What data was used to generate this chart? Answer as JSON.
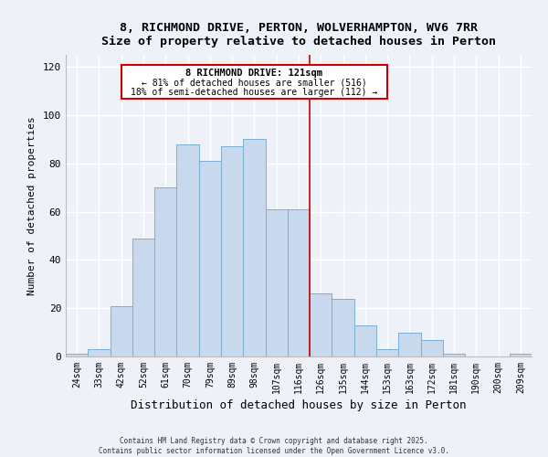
{
  "title": "8, RICHMOND DRIVE, PERTON, WOLVERHAMPTON, WV6 7RR",
  "subtitle": "Size of property relative to detached houses in Perton",
  "xlabel": "Distribution of detached houses by size in Perton",
  "ylabel": "Number of detached properties",
  "bar_labels": [
    "24sqm",
    "33sqm",
    "42sqm",
    "52sqm",
    "61sqm",
    "70sqm",
    "79sqm",
    "89sqm",
    "98sqm",
    "107sqm",
    "116sqm",
    "126sqm",
    "135sqm",
    "144sqm",
    "153sqm",
    "163sqm",
    "172sqm",
    "181sqm",
    "190sqm",
    "200sqm",
    "209sqm"
  ],
  "bar_values": [
    1,
    3,
    21,
    49,
    70,
    88,
    81,
    87,
    90,
    61,
    61,
    26,
    24,
    13,
    3,
    10,
    7,
    1,
    0,
    0,
    1
  ],
  "bar_color": "#c8d9ee",
  "bar_edge_color": "#7bafd4",
  "vline_x_index": 10,
  "vline_color": "#cc0000",
  "annotation_title": "8 RICHMOND DRIVE: 121sqm",
  "annotation_line1": "← 81% of detached houses are smaller (516)",
  "annotation_line2": "18% of semi-detached houses are larger (112) →",
  "annotation_box_color": "#cc0000",
  "ylim": [
    0,
    125
  ],
  "yticks": [
    0,
    20,
    40,
    60,
    80,
    100,
    120
  ],
  "footer1": "Contains HM Land Registry data © Crown copyright and database right 2025.",
  "footer2": "Contains public sector information licensed under the Open Government Licence v3.0.",
  "bg_color": "#eef2f8"
}
